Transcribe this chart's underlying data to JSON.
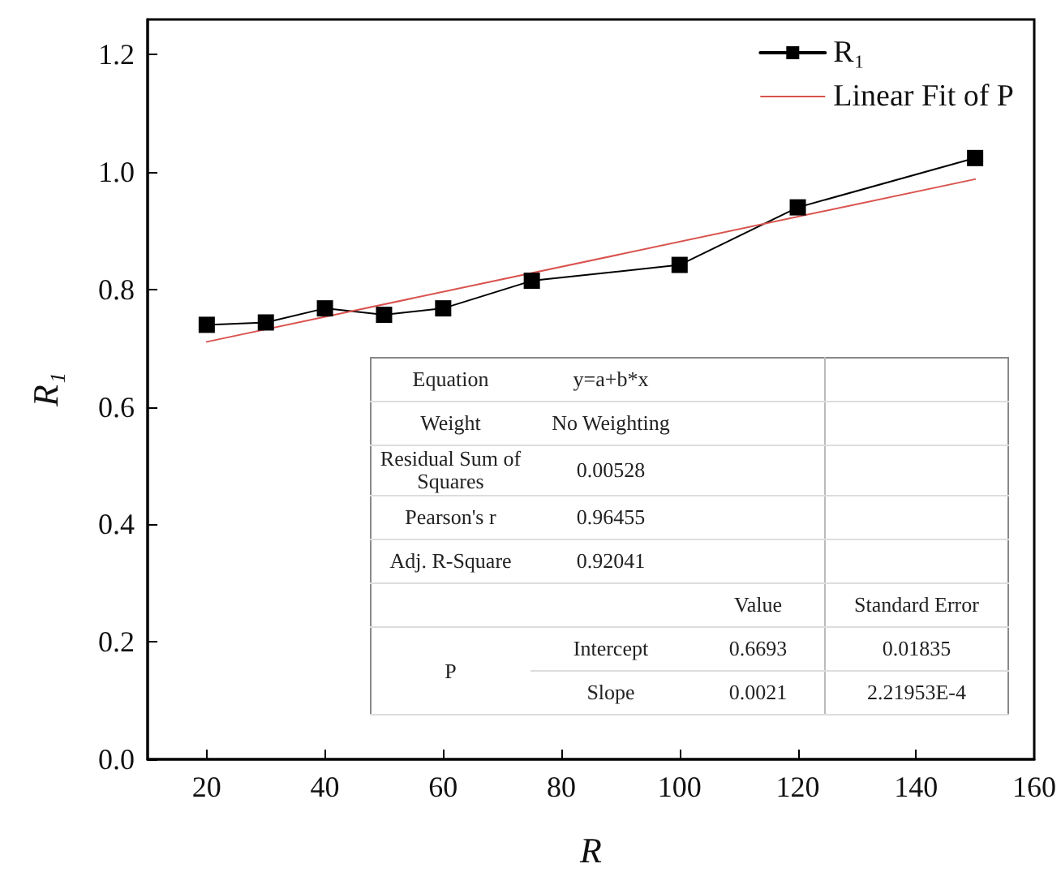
{
  "chart_data": {
    "type": "line",
    "xlabel": "R",
    "ylabel": "R₁",
    "xlim": [
      10,
      160
    ],
    "xticks": [
      20,
      40,
      60,
      80,
      100,
      120,
      140,
      160
    ],
    "ylim": [
      0,
      1.26
    ],
    "yticks": [
      {
        "value": 0,
        "label": "0.0"
      },
      0.2,
      0.4,
      0.6,
      0.8,
      {
        "value": 1,
        "label": "1.0"
      },
      1.2
    ],
    "series": [
      {
        "name": "R₁",
        "color": "#000000",
        "marker": "square",
        "x": [
          20,
          30,
          40,
          50,
          60,
          75,
          100,
          120,
          150
        ],
        "values": [
          0.74,
          0.744,
          0.768,
          0.757,
          0.768,
          0.815,
          0.842,
          0.94,
          1.024
        ]
      },
      {
        "name": "Linear Fit of P",
        "color": "#d9534f",
        "marker": "none",
        "x": [
          20,
          150
        ],
        "values": [
          0.711,
          0.988
        ]
      }
    ],
    "legend": "top right",
    "grid": false,
    "annotations": [
      "Equation",
      "y=a+b*x",
      "Weight",
      "No Weighting",
      "Residual Sum of Squares",
      "0.00528",
      "Pearson's r",
      "0.96455",
      "Adj. R-Square",
      "0.92041",
      "Value",
      "Standard Error",
      "P",
      "Intercept",
      "0.6693",
      "0.01835",
      "Slope",
      "0.0021",
      "2.21953E-4"
    ]
  }
}
